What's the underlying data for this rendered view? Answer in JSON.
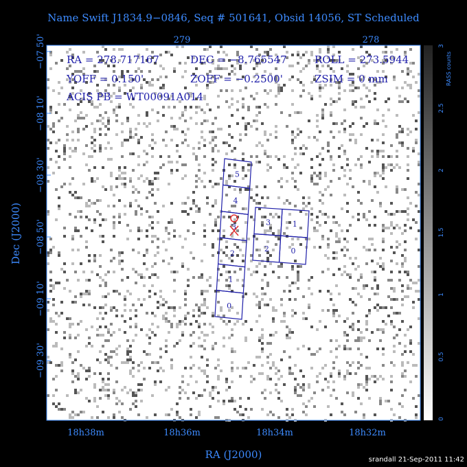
{
  "title": "Name Swift J1834.9−0846, Seq # 501641, Obsid 14056, ST Scheduled",
  "info": [
    [
      "RA = 278.717167",
      "DEC = −8.765547",
      "ROLL = 273.5944"
    ],
    [
      "YOFF =   0.150'",
      "ZOFF = −0.2500'",
      "ZSIM = 0 mm"
    ],
    [
      "ACIS PB = WT00091A014"
    ]
  ],
  "top_ticks": [
    "279",
    "278"
  ],
  "left_ticks": [
    "−07 50'",
    "−08 10'",
    "−08 30'",
    "−08 50'",
    "−09 10'",
    "−09 30'"
  ],
  "bottom_ticks": [
    "18h38m",
    "18h36m",
    "18h34m",
    "18h32m"
  ],
  "x_label": "RA (J2000)",
  "y_label": "Dec (J2000)",
  "colorbar": {
    "label": "RASS counts",
    "ticks": [
      "0",
      "0.5",
      "1",
      "1.5",
      "2",
      "2.5",
      "3"
    ]
  },
  "chips": {
    "column": [
      "5",
      "4",
      "3",
      "2",
      "1",
      "0"
    ],
    "block": [
      "3",
      "1",
      "2",
      "0"
    ]
  },
  "footer": "srandall 21-Sep-2011 11:42"
}
